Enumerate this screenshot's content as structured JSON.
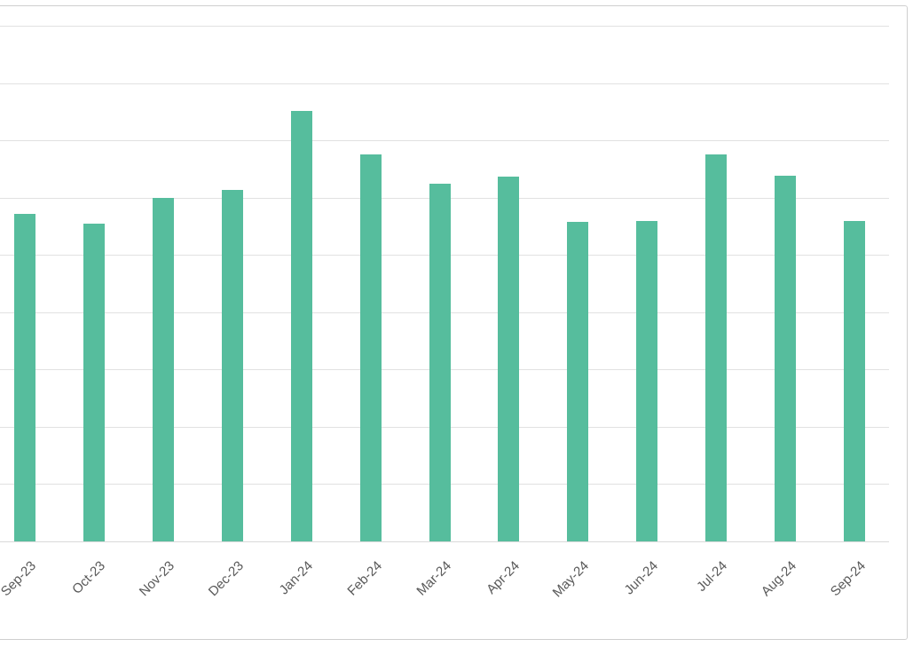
{
  "chart_data": {
    "type": "bar",
    "title": "",
    "xlabel": "",
    "ylabel": "",
    "categories": [
      "Sep-23",
      "Oct-23",
      "Nov-23",
      "Dec-23",
      "Jan-24",
      "Feb-24",
      "Mar-24",
      "Apr-24",
      "May-24",
      "Jun-24",
      "Jul-24",
      "Aug-24",
      "Sep-24"
    ],
    "values": [
      5.71,
      5.54,
      6.0,
      6.13,
      7.51,
      6.76,
      6.25,
      6.36,
      5.57,
      5.59,
      6.75,
      6.39,
      5.6
    ],
    "ylim": [
      0,
      9
    ],
    "gridline_step": 1,
    "grid": true,
    "legend": false,
    "x_tick_rotation": -45,
    "notes": "Chart is cropped: left edge, y-axis tick labels and title are outside the visible area. Values estimated in gridline units (one unit per horizontal gridline interval). First category label 'Sep-23' is partially clipped at the left edge.",
    "colors": {
      "bar_fill": "#56BD9D",
      "gridline": "#E1E1E1",
      "axis_line": "#D9D9D9",
      "frame_border": "#CFCFCF",
      "tick_label_text": "#595959",
      "background": "#FFFFFF"
    }
  }
}
